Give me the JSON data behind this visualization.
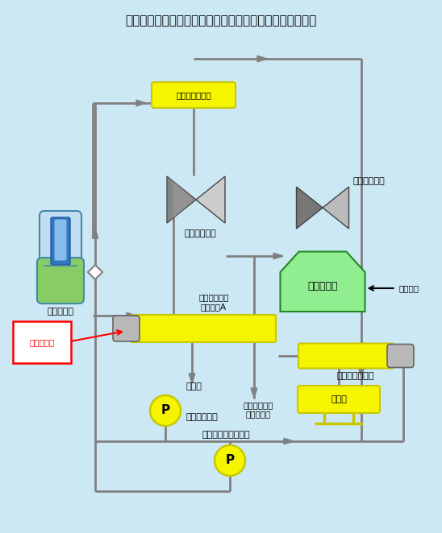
{
  "title": "伊方発電所１号機　第５高圧給水加熱器まわり概略系統図",
  "bg_color": "#cce8f5",
  "line_color": "#808080",
  "yellow_fill": "#f5f500",
  "yellow_stroke": "#c8c800",
  "green_fill": "#90ee90",
  "pump_fill": "#f5f500",
  "blue_sg_top": "#c0dff0",
  "blue_sg_inner": "#4488cc",
  "green_sg": "#88cc66",
  "labels": {
    "moisture_sep": "湿分分離加熱器",
    "hp_turbine": "高圧タービン",
    "lp_turbine": "低圧タービン",
    "condenser": "復　水　器",
    "steam_gen": "蒸気発生器",
    "hp_heater": "第５高圧給水\n加熱器１A",
    "lp_heater": "低圧給水加熱器",
    "deaerator1": "脱気器",
    "deaerator2": "脱気器",
    "main_pump": "主給水ポンプ",
    "booster_pump": "給水ブースタポンプ",
    "turbine_drain": "タービン建家\n排水ピット",
    "leak_point": "水漏れ箇所",
    "pure_water": "純水補給"
  }
}
